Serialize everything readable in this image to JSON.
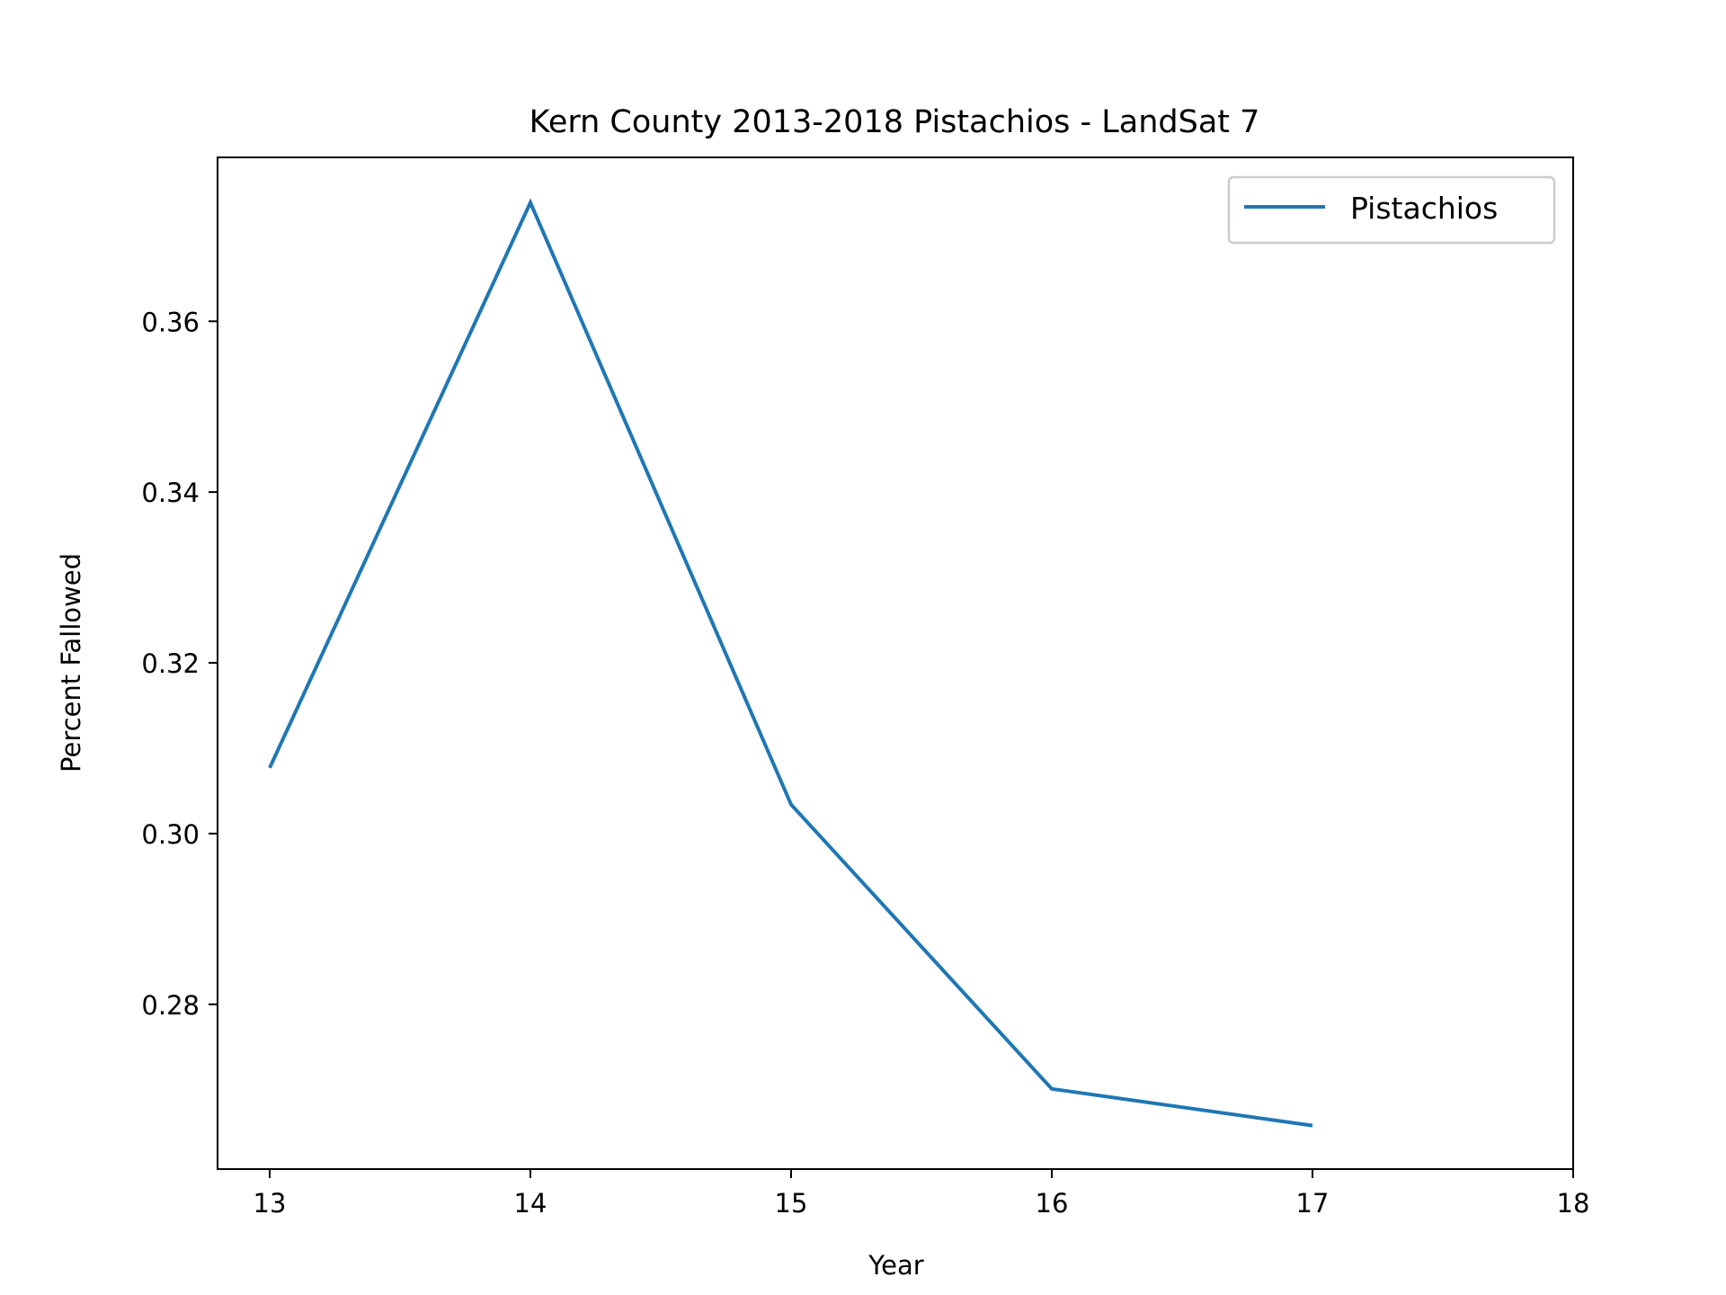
{
  "chart_data": {
    "type": "line",
    "title": "Kern County 2013-2018 Pistachios - LandSat 7",
    "xlabel": "Year",
    "ylabel": "Percent Fallowed",
    "x": [
      13,
      14,
      15,
      16,
      17
    ],
    "series": [
      {
        "name": "Pistachios",
        "color": "#1f77b4",
        "values": [
          0.3077,
          0.3739,
          0.3034,
          0.2701,
          0.2658
        ]
      }
    ],
    "xlim": [
      12.8,
      18
    ],
    "ylim": [
      0.2607,
      0.3792
    ],
    "xticks": [
      13,
      14,
      15,
      16,
      17,
      18
    ],
    "xtick_labels": [
      "13",
      "14",
      "15",
      "16",
      "17",
      "18"
    ],
    "yticks": [
      0.28,
      0.3,
      0.32,
      0.34,
      0.36
    ],
    "ytick_labels": [
      "0.28",
      "0.30",
      "0.32",
      "0.34",
      "0.36"
    ],
    "grid": false,
    "legend_position": "top-right"
  }
}
